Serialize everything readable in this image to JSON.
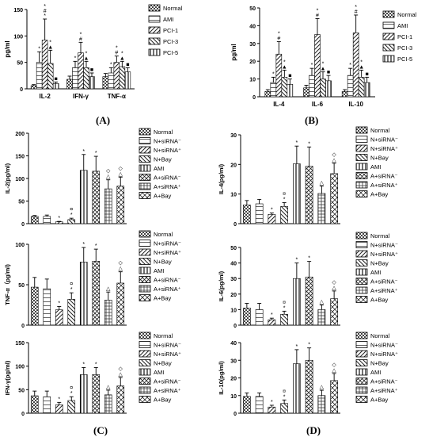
{
  "panel_labels": [
    "(A)",
    "(B)",
    "(C)",
    "(D)"
  ],
  "chart_data": [
    {
      "id": "A",
      "type": "bar",
      "ylabel": "pg/ml",
      "ylim": [
        0,
        150
      ],
      "yticks": [
        0,
        50,
        100,
        150
      ],
      "categories": [
        "IL-2",
        "IFN-γ",
        "TNF-α"
      ],
      "series": [
        {
          "name": "Normal",
          "values": [
            6,
            18,
            23
          ],
          "errors": [
            2,
            6,
            6
          ]
        },
        {
          "name": "AMI",
          "values": [
            50,
            40,
            30
          ],
          "errors": [
            20,
            12,
            10
          ]
        },
        {
          "name": "PCI-1",
          "values": [
            92,
            68,
            50
          ],
          "errors": [
            40,
            20,
            12
          ]
        },
        {
          "name": "PCI-3",
          "values": [
            48,
            40,
            42
          ],
          "errors": [
            25,
            12,
            10
          ]
        },
        {
          "name": "PCI-5",
          "values": [
            10,
            23,
            32
          ],
          "errors": [
            3,
            7,
            8
          ]
        }
      ],
      "annotations": [
        {
          "category": 0,
          "series": 1,
          "text": "*"
        },
        {
          "category": 0,
          "series": 2,
          "text": "*#*"
        },
        {
          "category": 0,
          "series": 3,
          "text": "*▲"
        },
        {
          "category": 0,
          "series": 4,
          "text": "■"
        },
        {
          "category": 1,
          "series": 1,
          "text": "*"
        },
        {
          "category": 1,
          "series": 2,
          "text": "*#"
        },
        {
          "category": 1,
          "series": 3,
          "text": "*▲"
        },
        {
          "category": 1,
          "series": 4,
          "text": "■"
        },
        {
          "category": 2,
          "series": 1,
          "text": "*"
        },
        {
          "category": 2,
          "series": 2,
          "text": "*#"
        },
        {
          "category": 2,
          "series": 3,
          "text": "*▲"
        },
        {
          "category": 2,
          "series": 4,
          "text": "■"
        }
      ]
    },
    {
      "id": "B",
      "type": "bar",
      "ylabel": "pg/ml",
      "ylim": [
        0,
        50
      ],
      "yticks": [
        0,
        10,
        20,
        30,
        40,
        50
      ],
      "categories": [
        "IL-4",
        "IL-6",
        "IL-10"
      ],
      "series": [
        {
          "name": "Normal",
          "values": [
            3,
            5,
            3
          ],
          "errors": [
            1,
            1.5,
            1
          ]
        },
        {
          "name": "AMI",
          "values": [
            8,
            12,
            12
          ],
          "errors": [
            3,
            4,
            4
          ]
        },
        {
          "name": "PCI-1",
          "values": [
            24,
            35,
            36
          ],
          "errors": [
            7,
            9,
            10
          ]
        },
        {
          "name": "PCI-3",
          "values": [
            11,
            10,
            11
          ],
          "errors": [
            4,
            4,
            4
          ]
        },
        {
          "name": "PCI-5",
          "values": [
            7,
            9,
            8
          ],
          "errors": [
            3,
            3,
            3
          ]
        }
      ],
      "annotations": [
        {
          "category": 0,
          "series": 1,
          "text": "*"
        },
        {
          "category": 0,
          "series": 2,
          "text": "*#"
        },
        {
          "category": 0,
          "series": 3,
          "text": "*▲"
        },
        {
          "category": 0,
          "series": 4,
          "text": "■"
        },
        {
          "category": 1,
          "series": 1,
          "text": "*"
        },
        {
          "category": 1,
          "series": 2,
          "text": "*#"
        },
        {
          "category": 1,
          "series": 3,
          "text": "*▲"
        },
        {
          "category": 1,
          "series": 4,
          "text": "■"
        },
        {
          "category": 2,
          "series": 1,
          "text": "*"
        },
        {
          "category": 2,
          "series": 2,
          "text": "*#"
        },
        {
          "category": 2,
          "series": 3,
          "text": "*▲"
        },
        {
          "category": 2,
          "series": 4,
          "text": "■"
        }
      ]
    },
    {
      "id": "C1",
      "type": "bar",
      "ylabel": "IL-2(pg/ml)",
      "ylim": [
        0,
        200
      ],
      "yticks": [
        0,
        50,
        100,
        150,
        200
      ],
      "categories": [
        "Normal",
        "N+siRNA⁻",
        "N+siRNA⁺",
        "N+Bay",
        "AMI",
        "A+siRNA⁻",
        "A+siRNA⁺",
        "A+Bay"
      ],
      "values": [
        16,
        16,
        4,
        9,
        118,
        116,
        77,
        83
      ],
      "errors": [
        2,
        3,
        1,
        3,
        35,
        33,
        20,
        20
      ],
      "markers": [
        "",
        "",
        "*",
        "¤*",
        "*",
        "*",
        "◇△",
        "◇△"
      ]
    },
    {
      "id": "C2",
      "type": "bar",
      "ylabel": "TNF-α（pg/ml)",
      "ylim": [
        0,
        100
      ],
      "yticks": [
        0,
        50,
        100
      ],
      "categories": [
        "Normal",
        "N+siRNA⁻",
        "N+siRNA⁺",
        "N+Bay",
        "AMI",
        "A+siRNA⁻",
        "A+siRNA⁺",
        "A+Bay"
      ],
      "values": [
        47,
        45,
        19,
        32,
        78,
        79,
        31,
        52
      ],
      "errors": [
        12,
        12,
        4,
        8,
        18,
        15,
        10,
        14
      ],
      "markers": [
        "",
        "",
        "*",
        "¤*",
        "*",
        "*",
        "△",
        "◇△"
      ]
    },
    {
      "id": "C3",
      "type": "bar",
      "ylabel": "IFN-γ(pg/ml)",
      "ylim": [
        0,
        150
      ],
      "yticks": [
        0,
        50,
        100,
        150
      ],
      "categories": [
        "Normal",
        "N+siRNA⁻",
        "N+siRNA⁺",
        "N+Bay",
        "AMI",
        "A+siRNA⁻",
        "A+siRNA⁺",
        "A+Bay"
      ],
      "values": [
        37,
        35,
        18,
        27,
        82,
        82,
        39,
        58
      ],
      "errors": [
        10,
        12,
        5,
        8,
        15,
        15,
        10,
        18
      ],
      "markers": [
        "",
        "",
        "*",
        "¤*",
        "*",
        "*",
        "△",
        "◇△"
      ]
    },
    {
      "id": "D1",
      "type": "bar",
      "ylabel": "IL-4(pg/ml)",
      "ylim": [
        0,
        30
      ],
      "yticks": [
        0,
        10,
        20,
        30
      ],
      "categories": [
        "Normal",
        "N+siRNA⁻",
        "N+siRNA⁺",
        "N+Bay",
        "AMI",
        "A+siRNA⁻",
        "A+siRNA⁺",
        "A+Bay"
      ],
      "values": [
        6.3,
        6.7,
        3.1,
        5.8,
        20.2,
        19.4,
        10.2,
        16.9
      ],
      "errors": [
        1.5,
        1.5,
        0.5,
        1.3,
        6,
        6.5,
        2.5,
        3.5
      ],
      "markers": [
        "",
        "",
        "*",
        "¤*",
        "*",
        "*",
        "△",
        "◇△"
      ]
    },
    {
      "id": "D2",
      "type": "bar",
      "ylabel": "IL-6(pg/ml)",
      "ylim": [
        0,
        50
      ],
      "yticks": [
        0,
        10,
        20,
        30,
        40,
        50
      ],
      "categories": [
        "Normal",
        "N+siRNA⁻",
        "N+siRNA⁺",
        "N+Bay",
        "AMI",
        "A+siRNA⁻",
        "A+siRNA⁺",
        "A+Bay"
      ],
      "values": [
        11,
        10,
        3.5,
        7,
        30,
        31,
        10,
        17
      ],
      "errors": [
        3,
        4,
        1,
        2,
        10,
        10,
        3,
        5
      ],
      "markers": [
        "",
        "",
        "*",
        "¤*",
        "*",
        "*",
        "△",
        "◇△"
      ]
    },
    {
      "id": "D3",
      "type": "bar",
      "ylabel": "IL-10(pg/ml)",
      "ylim": [
        0,
        40
      ],
      "yticks": [
        0,
        10,
        20,
        30,
        40
      ],
      "categories": [
        "Normal",
        "N+siRNA⁻",
        "N+siRNA⁺",
        "N+Bay",
        "AMI",
        "A+siRNA⁻",
        "A+siRNA⁺",
        "A+Bay"
      ],
      "values": [
        9.5,
        9.5,
        3.5,
        5.5,
        28,
        30,
        10,
        18.5
      ],
      "errors": [
        2,
        2,
        1,
        2,
        8,
        7,
        3,
        4
      ],
      "markers": [
        "",
        "",
        "*",
        "¤*",
        "*",
        "*",
        "△",
        "◇△"
      ]
    }
  ]
}
